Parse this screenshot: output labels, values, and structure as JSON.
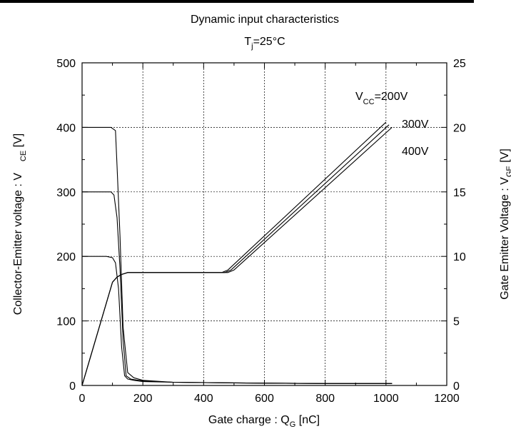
{
  "chart_data": {
    "type": "line",
    "title": "Dynamic input characteristics",
    "subtitle": {
      "main": "T",
      "sub": "j",
      "rest": "=25°C"
    },
    "xlabel": {
      "main": "Gate charge : Q",
      "sub": "G",
      "rest": " [nC]"
    },
    "ylabel_left": {
      "main": "Collector-Emitter voltage : V",
      "sub": "CE",
      "rest": " [V]"
    },
    "ylabel_right": {
      "main": "Gate Emitter Voltage : V",
      "sub": "GE",
      "rest": " [V]"
    },
    "xlim": [
      0,
      1200
    ],
    "ylim_left": [
      0,
      500
    ],
    "ylim_right": [
      0,
      25
    ],
    "x_ticks": [
      "0",
      "200",
      "400",
      "600",
      "800",
      "1000",
      "1200"
    ],
    "y_ticks_left": [
      "0",
      "100",
      "200",
      "300",
      "400",
      "500"
    ],
    "y_ticks_right": [
      "0",
      "5",
      "10",
      "15",
      "20",
      "25"
    ],
    "grid": true,
    "annotations": {
      "vcc_main": "V",
      "vcc_sub": "CC",
      "vcc_200": "=200V",
      "vcc_300": "300V",
      "vcc_400": "400V"
    },
    "vce_series": [
      {
        "axis": "left",
        "x": [
          0,
          80,
          100,
          110,
          120,
          130,
          140,
          150,
          170,
          200,
          300,
          500,
          800,
          1020
        ],
        "y": [
          200,
          200,
          198,
          190,
          150,
          60,
          15,
          10,
          8,
          6,
          5,
          4,
          3,
          3
        ]
      },
      {
        "axis": "left",
        "x": [
          0,
          95,
          105,
          115,
          125,
          135,
          145,
          160,
          200,
          300,
          500,
          800,
          1020
        ],
        "y": [
          300,
          300,
          295,
          260,
          180,
          70,
          15,
          10,
          7,
          5,
          4,
          3,
          3
        ]
      },
      {
        "axis": "left",
        "x": [
          0,
          95,
          110,
          115,
          125,
          135,
          150,
          170,
          200,
          300,
          500,
          800,
          1020
        ],
        "y": [
          400,
          400,
          395,
          340,
          230,
          90,
          20,
          12,
          8,
          5,
          4,
          3,
          3
        ]
      }
    ],
    "vge_series": [
      {
        "axis": "right",
        "x": [
          0,
          100,
          115,
          130,
          150,
          460,
          480,
          1000
        ],
        "y": [
          0,
          8.0,
          8.4,
          8.6,
          8.75,
          8.75,
          8.95,
          20.4
        ]
      },
      {
        "axis": "right",
        "x": [
          0,
          100,
          115,
          130,
          150,
          470,
          490,
          1010
        ],
        "y": [
          0,
          8.0,
          8.4,
          8.6,
          8.75,
          8.75,
          8.95,
          20.2
        ]
      },
      {
        "axis": "right",
        "x": [
          0,
          100,
          115,
          130,
          150,
          480,
          500,
          1020
        ],
        "y": [
          0,
          8.0,
          8.4,
          8.6,
          8.75,
          8.75,
          8.95,
          20.0
        ]
      }
    ]
  }
}
